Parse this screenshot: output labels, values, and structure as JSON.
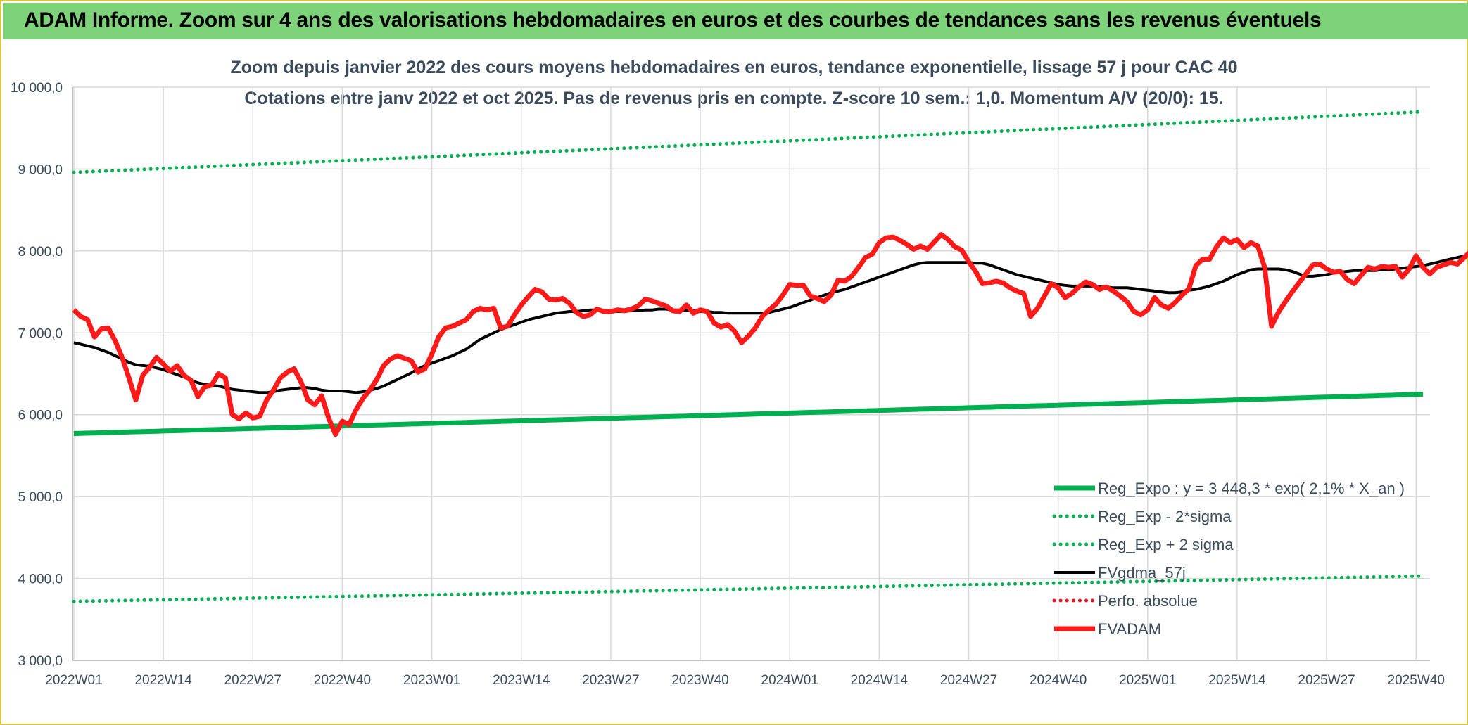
{
  "banner": {
    "title": "ADAM Informe. Zoom sur 4 ans des valorisations hebdomadaires en euros et des courbes de tendances sans les revenus éventuels"
  },
  "chart_data": {
    "type": "line",
    "title": "Zoom depuis janvier 2022 des cours moyens hebdomadaires en euros, tendance exponentielle, lissage 57 j pour CAC 40",
    "subtitle": "Cotations entre janv 2022 et oct 2025. Pas de revenus pris en compte. Z-score 10 sem.: 1,0. Momentum A/V (20/0): 15.",
    "xlabel": "",
    "ylabel": "",
    "ylim": [
      3000,
      10000
    ],
    "yticks": [
      "3 000,0",
      "4 000,0",
      "5 000,0",
      "6 000,0",
      "7 000,0",
      "8 000,0",
      "9 000,0",
      "10 000,0"
    ],
    "xticks": [
      "2022W01",
      "2022W14",
      "2022W27",
      "2022W40",
      "2023W01",
      "2023W14",
      "2023W27",
      "2023W40",
      "2024W01",
      "2024W14",
      "2024W27",
      "2024W40",
      "2025W01",
      "2025W14",
      "2025W27",
      "2025W40"
    ],
    "grid": true,
    "legend_position": "bottom-right",
    "x_start_week": "2022W01",
    "series": [
      {
        "name": "Reg_Expo : y = 3 448,3 * exp( 2,1% *  X_an )",
        "color": "#00b050",
        "style": "solid-thick",
        "start": 5770,
        "end": 6250
      },
      {
        "name": "Reg_Exp - 2*sigma",
        "color": "#00b050",
        "style": "dotted",
        "start": 3720,
        "end": 4030
      },
      {
        "name": "Reg_Exp + 2 sigma",
        "color": "#00b050",
        "style": "dotted",
        "start": 8960,
        "end": 9700
      },
      {
        "name": "FVgdma_57j",
        "color": "#000000",
        "style": "solid",
        "values": [
          6880,
          6860,
          6840,
          6820,
          6790,
          6760,
          6720,
          6680,
          6640,
          6610,
          6600,
          6590,
          6570,
          6550,
          6520,
          6490,
          6460,
          6420,
          6390,
          6370,
          6360,
          6350,
          6330,
          6310,
          6300,
          6290,
          6280,
          6270,
          6270,
          6280,
          6300,
          6310,
          6320,
          6330,
          6330,
          6320,
          6300,
          6290,
          6290,
          6290,
          6280,
          6270,
          6280,
          6300,
          6320,
          6350,
          6390,
          6430,
          6470,
          6510,
          6560,
          6600,
          6630,
          6660,
          6690,
          6720,
          6760,
          6800,
          6860,
          6920,
          6960,
          7000,
          7040,
          7070,
          7100,
          7130,
          7160,
          7180,
          7200,
          7220,
          7240,
          7250,
          7260,
          7260,
          7270,
          7280,
          7280,
          7270,
          7270,
          7260,
          7260,
          7270,
          7270,
          7280,
          7280,
          7290,
          7290,
          7280,
          7280,
          7270,
          7270,
          7260,
          7260,
          7250,
          7250,
          7240,
          7240,
          7240,
          7240,
          7240,
          7240,
          7250,
          7270,
          7290,
          7310,
          7340,
          7370,
          7400,
          7430,
          7460,
          7490,
          7510,
          7530,
          7560,
          7590,
          7620,
          7650,
          7680,
          7710,
          7740,
          7770,
          7800,
          7830,
          7850,
          7860,
          7860,
          7860,
          7860,
          7860,
          7860,
          7860,
          7850,
          7850,
          7830,
          7800,
          7770,
          7740,
          7710,
          7690,
          7670,
          7650,
          7630,
          7610,
          7590,
          7580,
          7570,
          7570,
          7570,
          7570,
          7560,
          7560,
          7550,
          7550,
          7550,
          7540,
          7530,
          7520,
          7510,
          7500,
          7490,
          7490,
          7500,
          7520,
          7530,
          7550,
          7570,
          7600,
          7630,
          7670,
          7710,
          7740,
          7770,
          7780,
          7780,
          7780,
          7780,
          7770,
          7750,
          7720,
          7690,
          7690,
          7700,
          7710,
          7730,
          7740,
          7750,
          7760,
          7760,
          7760,
          7760,
          7770,
          7770,
          7780,
          7790,
          7800,
          7810,
          7820,
          7840,
          7860,
          7880,
          7900,
          7920,
          7940,
          7960,
          7990,
          8020,
          8050,
          8060
        ]
      },
      {
        "name": "Perfo. absolue",
        "color": "#e31b23",
        "style": "dotted",
        "values": []
      },
      {
        "name": "FVADAM",
        "color": "#ff1a1a",
        "style": "solid-thick",
        "values": [
          7280,
          7200,
          7160,
          6950,
          7050,
          7060,
          6900,
          6700,
          6450,
          6180,
          6480,
          6580,
          6700,
          6620,
          6530,
          6600,
          6480,
          6420,
          6220,
          6340,
          6360,
          6500,
          6450,
          6000,
          5950,
          6020,
          5960,
          5980,
          6180,
          6300,
          6450,
          6520,
          6560,
          6400,
          6180,
          6120,
          6230,
          5960,
          5760,
          5920,
          5880,
          6060,
          6200,
          6300,
          6430,
          6600,
          6680,
          6720,
          6690,
          6660,
          6520,
          6560,
          6740,
          6950,
          7060,
          7080,
          7120,
          7160,
          7260,
          7300,
          7280,
          7300,
          7060,
          7080,
          7220,
          7340,
          7440,
          7530,
          7500,
          7410,
          7400,
          7420,
          7360,
          7250,
          7200,
          7220,
          7290,
          7260,
          7260,
          7280,
          7270,
          7290,
          7330,
          7410,
          7390,
          7360,
          7330,
          7270,
          7260,
          7340,
          7240,
          7280,
          7260,
          7120,
          7070,
          7100,
          7020,
          6880,
          6960,
          7060,
          7200,
          7280,
          7350,
          7460,
          7590,
          7580,
          7580,
          7450,
          7420,
          7380,
          7460,
          7640,
          7630,
          7690,
          7800,
          7920,
          7960,
          8100,
          8160,
          8170,
          8130,
          8080,
          8020,
          8060,
          8020,
          8110,
          8200,
          8140,
          8050,
          8010,
          7870,
          7750,
          7600,
          7610,
          7630,
          7610,
          7550,
          7510,
          7480,
          7200,
          7300,
          7450,
          7600,
          7550,
          7430,
          7480,
          7560,
          7620,
          7590,
          7530,
          7560,
          7510,
          7450,
          7380,
          7260,
          7220,
          7280,
          7430,
          7340,
          7300,
          7370,
          7460,
          7540,
          7820,
          7900,
          7900,
          8050,
          8160,
          8100,
          8140,
          8040,
          8100,
          8060,
          7800,
          7080,
          7250,
          7380,
          7500,
          7610,
          7720,
          7830,
          7840,
          7780,
          7740,
          7750,
          7650,
          7600,
          7700,
          7800,
          7780,
          7810,
          7800,
          7810,
          7680,
          7780,
          7940,
          7800,
          7720,
          7800,
          7830,
          7860,
          7840,
          7920,
          8000,
          8020,
          8060,
          8220,
          8200
        ]
      }
    ]
  }
}
